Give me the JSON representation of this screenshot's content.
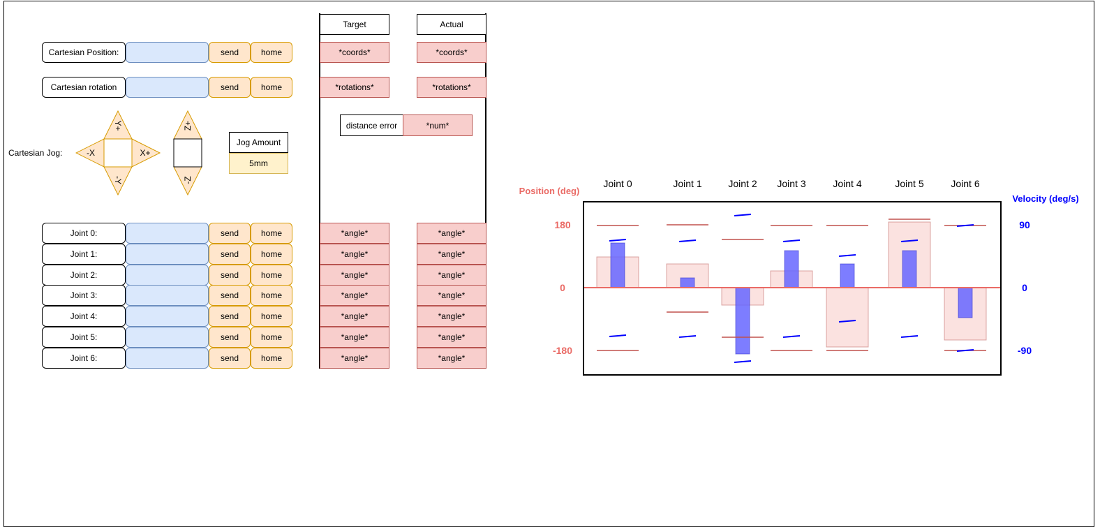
{
  "cartesian": {
    "position_label": "Cartesian Position:",
    "rotation_label": "Cartesian rotation",
    "send_label": "send",
    "home_label": "home"
  },
  "jog": {
    "label": "Cartesian Jog:",
    "x_neg": "-X",
    "x_pos": "X+",
    "y_pos": "Y+",
    "y_neg": "-Y",
    "z_pos": "Z+",
    "z_neg": "-Z",
    "amount_label": "Jog Amount",
    "amount_value": "5mm"
  },
  "table": {
    "target_header": "Target",
    "actual_header": "Actual",
    "coords": "*coords*",
    "rotations": "*rotations*",
    "distance_error_label": "distance error",
    "distance_error_value": "*num*",
    "angle": "*angle*"
  },
  "joints": [
    {
      "label": "Joint 0:"
    },
    {
      "label": "Joint 1:"
    },
    {
      "label": "Joint 2:"
    },
    {
      "label": "Joint 3:"
    },
    {
      "label": "Joint 4:"
    },
    {
      "label": "Joint 5:"
    },
    {
      "label": "Joint 6:"
    }
  ],
  "chart_data": {
    "type": "bar",
    "categories": [
      "Joint 0",
      "Joint 1",
      "Joint 2",
      "Joint 3",
      "Joint 4",
      "Joint 5",
      "Joint 6"
    ],
    "left_axis": {
      "label": "Position (deg)",
      "ticks": [
        "180",
        "0",
        "-180"
      ],
      "range": [
        -180,
        180
      ],
      "color": "#ea6b66"
    },
    "right_axis": {
      "label": "Velocity (deg/s)",
      "ticks": [
        "90",
        "0",
        "-90"
      ],
      "range": [
        -90,
        90
      ],
      "color": "#0000ff"
    },
    "series": [
      {
        "values": [
          88,
          68,
          -50,
          48,
          -170,
          188,
          -150
        ],
        "color": "#f8cecc"
      },
      {
        "values": [
          64,
          14,
          -95,
          53,
          34,
          53,
          -43
        ],
        "color": "#6666ff"
      }
    ],
    "position_limits_upper": [
      178,
      180,
      138,
      178,
      178,
      196,
      178
    ],
    "position_limits_lower": [
      -180,
      -70,
      -142,
      -180,
      -180,
      null,
      -180
    ],
    "velocity_limits_upper": [
      68,
      67,
      104,
      67,
      46,
      67,
      89
    ],
    "velocity_limits_lower": [
      -69,
      -70,
      -106,
      -70,
      -48,
      -70,
      -90
    ]
  }
}
